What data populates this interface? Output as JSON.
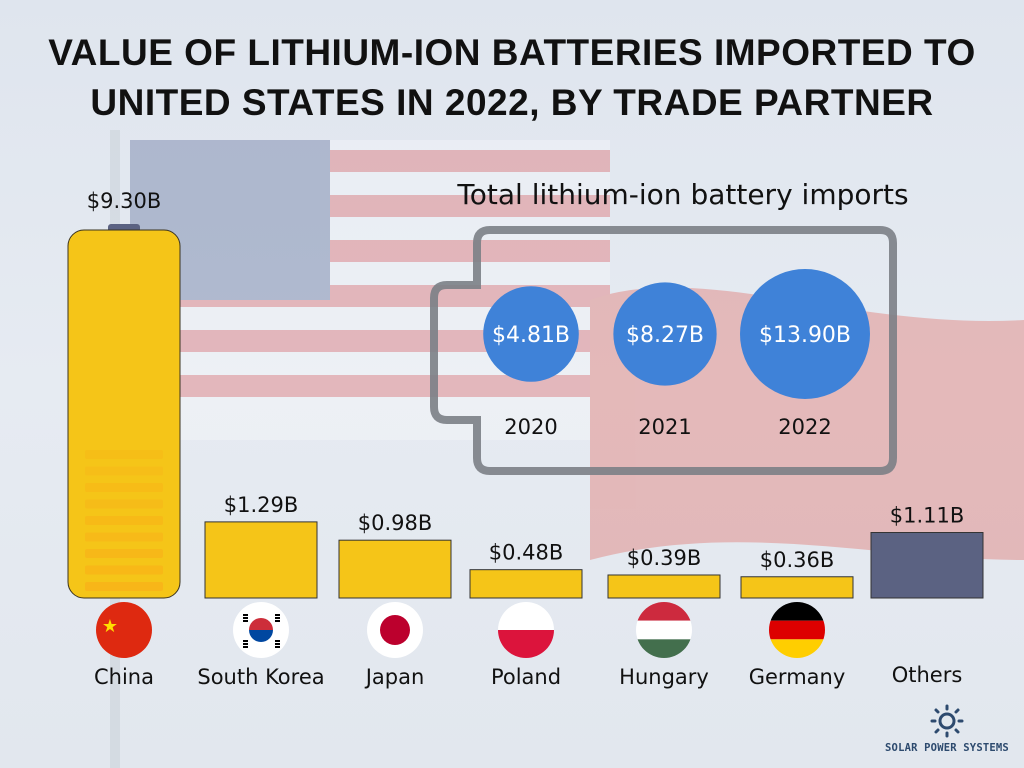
{
  "title": "VALUE OF LITHIUM-ION BATTERIES IMPORTED TO UNITED STATES IN 2022, BY TRADE PARTNER",
  "title_lines": [
    "VALUE OF LITHIUM-ION BATTERIES IMPORTED TO",
    "UNITED STATES IN 2022, BY TRADE PARTNER"
  ],
  "chart_data": [
    {
      "type": "bar",
      "title": "VALUE OF LITHIUM-ION BATTERIES IMPORTED TO UNITED STATES IN 2022, BY TRADE PARTNER",
      "categories": [
        "China",
        "South Korea",
        "Japan",
        "Poland",
        "Hungary",
        "Germany",
        "Others"
      ],
      "values": [
        9.3,
        1.29,
        0.98,
        0.48,
        0.39,
        0.36,
        1.11
      ],
      "data_labels": [
        "$9.30B",
        "$1.29B",
        "$0.98B",
        "$0.48B",
        "$0.39B",
        "$0.36B",
        "$1.11B"
      ],
      "unit": "billion USD",
      "colors": {
        "bar": "#f5c518",
        "others": "#5b6282",
        "stripe": "#f8b318"
      },
      "grid": false
    },
    {
      "type": "bubble",
      "title": "Total lithium-ion battery imports",
      "categories": [
        "2020",
        "2021",
        "2022"
      ],
      "values": [
        4.81,
        8.27,
        13.9
      ],
      "data_labels": [
        "$4.81B",
        "$8.27B",
        "$13.90B"
      ],
      "colors": {
        "bubble": "#3f82d8",
        "outline": "#7b7f86"
      }
    }
  ],
  "flags": [
    "china-flag",
    "south-korea-flag",
    "japan-flag",
    "poland-flag",
    "hungary-flag",
    "germany-flag"
  ],
  "logo": {
    "text": "SOLAR POWER SYSTEMS",
    "icon": "sun-icon"
  }
}
